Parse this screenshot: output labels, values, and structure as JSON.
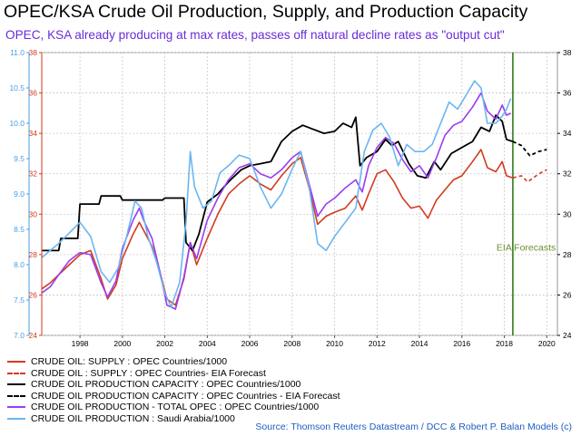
{
  "title": "OPEC/KSA Crude Oil Production, Supply, and Production Capacity",
  "subtitle": "OPEC, KSA already producing at max rates, passes off natural decline rates as \"output cut\"",
  "source": "Source: Thomson Reuters Datastream / DCC & Robert P. Balan Models (c)",
  "annotation": "EIA Forecasts",
  "legend": [
    "CRUDE OIL: SUPPLY : OPEC Countries/1000",
    "CRUDE OIL : SUPPLY : OPEC Countries- EIA Forecast",
    "CRUDE OIL PRODUCTION CAPACITY : OPEC Countries/1000",
    "CRUDE OIL PRODUCTION CAPACITY : OPEC Countries - EIA Forecast",
    "CRUDE OIL PRODUCTION - TOTAL OPEC : OPEC Countries/1000",
    "CRUDE OIL PRODUCTION : Saudi Arabia/1000"
  ],
  "colors": {
    "supply": "#d23a1e",
    "capacity": "#000000",
    "total_opec": "#9a3cf0",
    "saudi": "#6cb6ef",
    "forecast_line": "#2e7d1a",
    "annotation": "#6b8f2f"
  },
  "chart_data": {
    "type": "line",
    "x_ticks": [
      "1998",
      "2000",
      "2002",
      "2004",
      "2006",
      "2008",
      "2010",
      "2012",
      "2014",
      "2016",
      "2018",
      "2020"
    ],
    "x_range": [
      1996.2,
      2020.5
    ],
    "left_axis": {
      "range": [
        7.0,
        11.0
      ],
      "ticks": [
        "7.0",
        "7.5",
        "8.0",
        "8.5",
        "9.0",
        "9.5",
        "10.0",
        "10.5",
        "11.0"
      ],
      "color": "#4a9de0"
    },
    "inner_axis": {
      "range": [
        24,
        38
      ],
      "ticks": [
        "24",
        "26",
        "28",
        "30",
        "32",
        "34",
        "36",
        "38"
      ],
      "color": "#d23a1e"
    },
    "right_axis": {
      "range": [
        24,
        38
      ],
      "ticks": [
        "24",
        "26",
        "28",
        "30",
        "32",
        "34",
        "36",
        "38"
      ],
      "color": "#000000"
    },
    "forecast_start": 2018.4,
    "grid": true,
    "legend_position": "bottom-left",
    "series": [
      {
        "key": "supply",
        "axis": "inner",
        "style": "solid",
        "points": [
          [
            1996.2,
            26.3
          ],
          [
            1996.6,
            26.6
          ],
          [
            1997.0,
            27.0
          ],
          [
            1997.5,
            27.5
          ],
          [
            1998.0,
            28.0
          ],
          [
            1998.5,
            28.2
          ],
          [
            1999.0,
            26.8
          ],
          [
            1999.3,
            25.8
          ],
          [
            1999.7,
            26.5
          ],
          [
            2000.0,
            27.8
          ],
          [
            2000.5,
            29.0
          ],
          [
            2000.8,
            29.6
          ],
          [
            2001.0,
            29.2
          ],
          [
            2001.4,
            28.4
          ],
          [
            2001.8,
            27.0
          ],
          [
            2002.1,
            25.8
          ],
          [
            2002.5,
            25.5
          ],
          [
            2002.9,
            26.8
          ],
          [
            2003.2,
            28.6
          ],
          [
            2003.5,
            27.5
          ],
          [
            2004.0,
            28.8
          ],
          [
            2004.5,
            30.0
          ],
          [
            2005.0,
            31.0
          ],
          [
            2005.5,
            31.5
          ],
          [
            2006.0,
            31.9
          ],
          [
            2006.5,
            31.5
          ],
          [
            2007.0,
            31.2
          ],
          [
            2007.5,
            31.9
          ],
          [
            2008.0,
            32.5
          ],
          [
            2008.4,
            32.8
          ],
          [
            2008.8,
            31.3
          ],
          [
            2009.2,
            29.5
          ],
          [
            2009.6,
            29.9
          ],
          [
            2010.0,
            30.1
          ],
          [
            2010.5,
            30.3
          ],
          [
            2011.0,
            30.9
          ],
          [
            2011.3,
            30.2
          ],
          [
            2011.6,
            31.0
          ],
          [
            2012.0,
            32.0
          ],
          [
            2012.4,
            32.2
          ],
          [
            2012.8,
            31.6
          ],
          [
            2013.2,
            30.8
          ],
          [
            2013.6,
            30.3
          ],
          [
            2014.0,
            30.4
          ],
          [
            2014.4,
            29.8
          ],
          [
            2014.8,
            30.7
          ],
          [
            2015.2,
            31.2
          ],
          [
            2015.6,
            31.7
          ],
          [
            2016.0,
            31.9
          ],
          [
            2016.5,
            32.6
          ],
          [
            2016.9,
            33.2
          ],
          [
            2017.2,
            32.3
          ],
          [
            2017.6,
            32.1
          ],
          [
            2017.9,
            32.6
          ],
          [
            2018.1,
            31.9
          ],
          [
            2018.4,
            31.8
          ]
        ]
      },
      {
        "key": "supply",
        "axis": "inner",
        "style": "dashed",
        "points": [
          [
            2018.4,
            31.8
          ],
          [
            2018.8,
            31.9
          ],
          [
            2019.1,
            31.6
          ],
          [
            2019.5,
            31.9
          ],
          [
            2019.8,
            32.1
          ],
          [
            2020.0,
            32.2
          ]
        ]
      },
      {
        "key": "capacity",
        "axis": "right",
        "style": "solid",
        "points": [
          [
            1996.2,
            28.2
          ],
          [
            1997.0,
            28.2
          ],
          [
            1997.1,
            28.8
          ],
          [
            1997.9,
            28.8
          ],
          [
            1998.0,
            30.5
          ],
          [
            1998.9,
            30.5
          ],
          [
            1999.0,
            30.9
          ],
          [
            1999.9,
            30.9
          ],
          [
            2000.0,
            30.7
          ],
          [
            2001.9,
            30.7
          ],
          [
            2002.0,
            30.8
          ],
          [
            2002.9,
            30.8
          ],
          [
            2003.0,
            28.6
          ],
          [
            2003.3,
            28.2
          ],
          [
            2003.6,
            29.0
          ],
          [
            2004.0,
            30.6
          ],
          [
            2004.5,
            31.0
          ],
          [
            2005.0,
            31.6
          ],
          [
            2005.6,
            32.2
          ],
          [
            2006.0,
            32.4
          ],
          [
            2006.5,
            32.5
          ],
          [
            2007.0,
            32.6
          ],
          [
            2007.5,
            33.6
          ],
          [
            2008.0,
            34.1
          ],
          [
            2008.5,
            34.4
          ],
          [
            2009.0,
            34.2
          ],
          [
            2009.5,
            34.0
          ],
          [
            2010.0,
            34.1
          ],
          [
            2010.4,
            34.5
          ],
          [
            2010.8,
            34.3
          ],
          [
            2011.0,
            34.8
          ],
          [
            2011.2,
            32.4
          ],
          [
            2011.5,
            32.8
          ],
          [
            2012.0,
            33.1
          ],
          [
            2012.4,
            33.7
          ],
          [
            2012.7,
            33.4
          ],
          [
            2013.0,
            33.6
          ],
          [
            2013.5,
            32.5
          ],
          [
            2013.9,
            31.9
          ],
          [
            2014.3,
            31.8
          ],
          [
            2014.7,
            32.6
          ],
          [
            2015.0,
            32.2
          ],
          [
            2015.5,
            33.0
          ],
          [
            2016.0,
            33.3
          ],
          [
            2016.5,
            33.6
          ],
          [
            2016.9,
            34.3
          ],
          [
            2017.3,
            34.1
          ],
          [
            2017.6,
            34.9
          ],
          [
            2017.9,
            34.6
          ],
          [
            2018.1,
            33.7
          ],
          [
            2018.4,
            33.6
          ]
        ]
      },
      {
        "key": "capacity",
        "axis": "right",
        "style": "dashed",
        "points": [
          [
            2018.4,
            33.6
          ],
          [
            2018.8,
            33.4
          ],
          [
            2019.2,
            32.9
          ],
          [
            2019.6,
            33.1
          ],
          [
            2020.0,
            33.2
          ]
        ]
      },
      {
        "key": "total_opec",
        "axis": "inner",
        "style": "solid",
        "points": [
          [
            1996.2,
            26.1
          ],
          [
            1996.6,
            26.4
          ],
          [
            1997.0,
            27.0
          ],
          [
            1997.5,
            27.7
          ],
          [
            1998.0,
            28.1
          ],
          [
            1998.5,
            28.0
          ],
          [
            1999.0,
            26.6
          ],
          [
            1999.3,
            25.9
          ],
          [
            1999.7,
            26.7
          ],
          [
            2000.0,
            28.3
          ],
          [
            2000.5,
            29.7
          ],
          [
            2000.8,
            30.3
          ],
          [
            2001.0,
            29.7
          ],
          [
            2001.4,
            28.8
          ],
          [
            2001.8,
            27.0
          ],
          [
            2002.1,
            25.5
          ],
          [
            2002.5,
            25.3
          ],
          [
            2002.9,
            26.9
          ],
          [
            2003.2,
            28.6
          ],
          [
            2003.5,
            27.8
          ],
          [
            2004.0,
            29.7
          ],
          [
            2004.5,
            30.8
          ],
          [
            2005.0,
            31.7
          ],
          [
            2005.5,
            32.3
          ],
          [
            2006.0,
            32.5
          ],
          [
            2006.5,
            32.0
          ],
          [
            2007.0,
            31.8
          ],
          [
            2007.5,
            32.2
          ],
          [
            2008.0,
            32.8
          ],
          [
            2008.4,
            33.1
          ],
          [
            2008.8,
            31.5
          ],
          [
            2009.2,
            29.9
          ],
          [
            2009.6,
            30.5
          ],
          [
            2010.0,
            30.8
          ],
          [
            2010.5,
            31.3
          ],
          [
            2011.0,
            31.7
          ],
          [
            2011.3,
            31.1
          ],
          [
            2011.6,
            32.4
          ],
          [
            2012.0,
            33.3
          ],
          [
            2012.4,
            33.8
          ],
          [
            2012.8,
            33.5
          ],
          [
            2013.2,
            32.7
          ],
          [
            2013.6,
            32.1
          ],
          [
            2014.0,
            32.4
          ],
          [
            2014.4,
            31.8
          ],
          [
            2014.8,
            32.8
          ],
          [
            2015.2,
            33.9
          ],
          [
            2015.6,
            34.4
          ],
          [
            2016.0,
            34.6
          ],
          [
            2016.5,
            35.3
          ],
          [
            2016.9,
            36.0
          ],
          [
            2017.2,
            35.1
          ],
          [
            2017.6,
            34.7
          ],
          [
            2017.9,
            35.4
          ],
          [
            2018.1,
            34.9
          ],
          [
            2018.3,
            35.0
          ]
        ]
      },
      {
        "key": "saudi",
        "axis": "left",
        "style": "solid",
        "points": [
          [
            1996.2,
            8.1
          ],
          [
            1996.6,
            8.2
          ],
          [
            1997.0,
            8.3
          ],
          [
            1997.5,
            8.45
          ],
          [
            1998.0,
            8.6
          ],
          [
            1998.5,
            8.4
          ],
          [
            1999.0,
            7.9
          ],
          [
            1999.4,
            7.75
          ],
          [
            1999.8,
            7.95
          ],
          [
            2000.2,
            8.4
          ],
          [
            2000.6,
            8.9
          ],
          [
            2000.9,
            8.8
          ],
          [
            2001.2,
            8.4
          ],
          [
            2001.6,
            8.05
          ],
          [
            2002.0,
            7.6
          ],
          [
            2002.3,
            7.4
          ],
          [
            2002.7,
            7.75
          ],
          [
            2003.0,
            8.6
          ],
          [
            2003.2,
            9.6
          ],
          [
            2003.4,
            9.1
          ],
          [
            2003.8,
            8.8
          ],
          [
            2004.2,
            8.9
          ],
          [
            2004.6,
            9.3
          ],
          [
            2005.0,
            9.4
          ],
          [
            2005.5,
            9.55
          ],
          [
            2006.0,
            9.5
          ],
          [
            2006.5,
            9.1
          ],
          [
            2007.0,
            8.8
          ],
          [
            2007.5,
            9.0
          ],
          [
            2008.0,
            9.35
          ],
          [
            2008.4,
            9.6
          ],
          [
            2008.8,
            9.1
          ],
          [
            2009.2,
            8.3
          ],
          [
            2009.6,
            8.2
          ],
          [
            2010.0,
            8.4
          ],
          [
            2010.5,
            8.6
          ],
          [
            2011.0,
            8.8
          ],
          [
            2011.4,
            9.6
          ],
          [
            2011.8,
            9.9
          ],
          [
            2012.2,
            10.0
          ],
          [
            2012.6,
            9.8
          ],
          [
            2013.0,
            9.4
          ],
          [
            2013.4,
            9.7
          ],
          [
            2013.8,
            9.6
          ],
          [
            2014.2,
            9.6
          ],
          [
            2014.6,
            9.7
          ],
          [
            2015.0,
            10.0
          ],
          [
            2015.4,
            10.3
          ],
          [
            2015.8,
            10.2
          ],
          [
            2016.2,
            10.4
          ],
          [
            2016.6,
            10.6
          ],
          [
            2016.9,
            10.5
          ],
          [
            2017.2,
            10.0
          ],
          [
            2017.6,
            10.0
          ],
          [
            2017.9,
            10.1
          ],
          [
            2018.1,
            10.2
          ],
          [
            2018.3,
            10.35
          ]
        ]
      }
    ]
  }
}
